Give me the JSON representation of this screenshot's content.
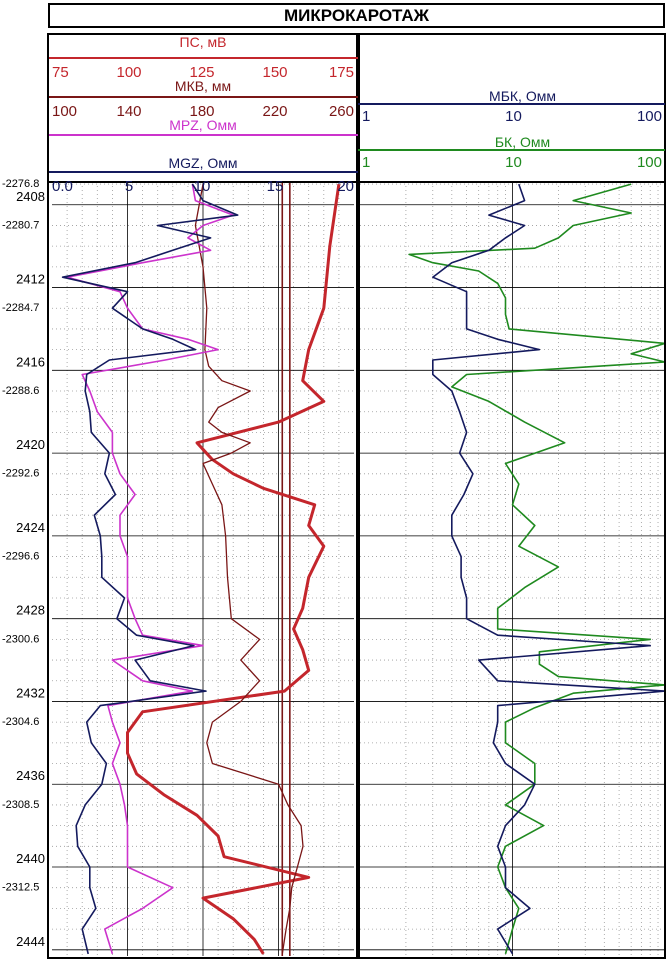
{
  "title": "МИКРОКАРОТАЖ",
  "colors": {
    "ps": "#c4262c",
    "mkv": "#7a1616",
    "mpz": "#cc33cc",
    "mgz": "#141a5e",
    "mbk": "#141a5e",
    "bk": "#1f8a1f",
    "grid_major": "#000000",
    "grid_minor": "#9a9a9a"
  },
  "chart_data": [
    {
      "type": "line",
      "track": "left",
      "y_axis": {
        "unit": "m",
        "range_md": [
          2406.9,
          2444.3
        ],
        "md_labels": [
          "2408",
          "2412",
          "2416",
          "2420",
          "2424",
          "2428",
          "2432",
          "2436",
          "2440",
          "2444"
        ],
        "md_label_values": [
          2408,
          2412,
          2416,
          2420,
          2424,
          2428,
          2432,
          2436,
          2440,
          2444
        ],
        "tvd_labels": [
          "-2276.8",
          "-2280.7",
          "-2284.7",
          "-2288.6",
          "-2292.6",
          "-2296.6",
          "-2300.6",
          "-2304.6",
          "-2308.5",
          "-2312.5"
        ],
        "tvd_label_md": [
          2406.9,
          2408.9,
          2412.9,
          2416.9,
          2420.9,
          2424.9,
          2428.9,
          2432.9,
          2436.9,
          2440.9
        ]
      },
      "scales": [
        {
          "name": "ПС, мВ",
          "ticks": [
            "75",
            "100",
            "125",
            "150",
            "175"
          ],
          "range": [
            75,
            175
          ]
        },
        {
          "name": "МКВ, мм",
          "ticks": [
            "100",
            "140",
            "180",
            "220",
            "260"
          ],
          "range": [
            100,
            260
          ]
        },
        {
          "name": "MPZ, Омм",
          "ticks": [],
          "range": [
            0,
            20
          ]
        },
        {
          "name": "MGZ, Омм",
          "ticks": [
            "0.0",
            "5",
            "10",
            "15",
            "20"
          ],
          "range": [
            0,
            20
          ]
        }
      ],
      "series": [
        {
          "name": "ПС, мВ",
          "x_scale": 0,
          "depth": [
            2407,
            2410,
            2413,
            2415,
            2416.5,
            2417.5,
            2418.5,
            2419.5,
            2420.3,
            2421,
            2421.7,
            2422.5,
            2423.5,
            2424.5,
            2426,
            2427.5,
            2428.5,
            2429.5,
            2430.5,
            2431.5,
            2432.5,
            2433.5,
            2434.5,
            2435.5,
            2436.5,
            2437.5,
            2438.5,
            2439.5,
            2440.5,
            2441.5,
            2442.5,
            2443.5,
            2444.2
          ],
          "values": [
            170,
            167,
            165,
            160,
            158,
            165,
            150,
            123,
            128,
            135,
            145,
            162,
            160,
            165,
            160,
            158,
            155,
            158,
            160,
            152,
            105,
            100,
            100,
            103,
            112,
            123,
            130,
            132,
            160,
            125,
            135,
            142,
            145
          ]
        },
        {
          "name": "МКВ, мм",
          "x_scale": 1,
          "depth": [
            2407,
            2409,
            2411,
            2413,
            2415,
            2415.8,
            2416.5,
            2417,
            2417.8,
            2418.5,
            2419,
            2419.5,
            2420,
            2420.5,
            2421.5,
            2422.5,
            2424,
            2426,
            2428,
            2429,
            2430,
            2431,
            2432,
            2433,
            2434,
            2435,
            2436,
            2437,
            2438,
            2439,
            2440,
            2441,
            2442,
            2443,
            2444.2
          ],
          "values": [
            180,
            176,
            180,
            182,
            181,
            183,
            190,
            205,
            188,
            183,
            190,
            205,
            195,
            180,
            185,
            190,
            192,
            193,
            195,
            210,
            200,
            210,
            200,
            185,
            182,
            185,
            220,
            225,
            232,
            233,
            230,
            227,
            226,
            224,
            222
          ]
        },
        {
          "name": "MPZ, Омм",
          "x_scale": 2,
          "depth": [
            2407,
            2407.8,
            2408.5,
            2409,
            2409.6,
            2410.2,
            2410.8,
            2411.5,
            2412.2,
            2413,
            2414,
            2414.5,
            2415,
            2415.5,
            2416.2,
            2417,
            2418,
            2419,
            2420,
            2421,
            2422,
            2423,
            2424,
            2425,
            2426,
            2427,
            2428,
            2428.8,
            2429.3,
            2430,
            2431,
            2431.5,
            2432.2,
            2433,
            2434,
            2435,
            2436,
            2437,
            2438,
            2439,
            2440,
            2441,
            2442,
            2443,
            2444.2
          ],
          "values": [
            9.3,
            9.5,
            12,
            10,
            9,
            10.5,
            6,
            1,
            4.5,
            5,
            6,
            9,
            11,
            7.5,
            2,
            2.5,
            3,
            4,
            4,
            4.5,
            5.5,
            4.5,
            4.5,
            5,
            5,
            5,
            5.5,
            6,
            10,
            4,
            6,
            9.3,
            3.7,
            4,
            4.5,
            4,
            4.5,
            4.8,
            5,
            5,
            5,
            8,
            6,
            3.5,
            4
          ]
        },
        {
          "name": "MGZ, Омм",
          "x_scale": 3,
          "depth": [
            2407,
            2407.8,
            2408.5,
            2409,
            2409.6,
            2410.2,
            2410.8,
            2411.5,
            2412.2,
            2413,
            2414,
            2414.5,
            2415,
            2415.5,
            2416.2,
            2417,
            2418,
            2419,
            2420,
            2421,
            2422,
            2423,
            2424,
            2425,
            2426,
            2427,
            2428,
            2428.8,
            2429.3,
            2430,
            2431,
            2431.5,
            2432.2,
            2433,
            2434,
            2435,
            2436,
            2437,
            2438,
            2439,
            2440,
            2441,
            2442,
            2443,
            2444.2
          ],
          "values": [
            9.3,
            10,
            12.3,
            7,
            10.5,
            8,
            5.5,
            0.7,
            5,
            4,
            6,
            8,
            9.5,
            3.8,
            2.3,
            2.2,
            2.5,
            2.6,
            3.8,
            3.5,
            4.2,
            2.8,
            3.2,
            3.3,
            3.3,
            4.8,
            4.3,
            5.6,
            9.4,
            5.5,
            6.5,
            10.2,
            3.2,
            2.3,
            2.6,
            3.6,
            3.3,
            2.2,
            1.6,
            1.7,
            2.5,
            2.5,
            2.9,
            2,
            2.4
          ]
        }
      ],
      "vertical_markers": [
        {
          "name": "МКВ, мм",
          "x_scale": 1,
          "value": 222
        },
        {
          "name": "МКВ, мм",
          "x_scale": 1,
          "value": 226
        }
      ]
    },
    {
      "type": "line",
      "track": "right",
      "x_log": true,
      "y_axis": {
        "unit": "m",
        "range_md": [
          2406.9,
          2444.3
        ]
      },
      "scales": [
        {
          "name": "МБК, Омм",
          "ticks": [
            "1",
            "10",
            "100"
          ],
          "range": [
            1,
            100
          ]
        },
        {
          "name": "БК, Омм",
          "ticks": [
            "1",
            "10",
            "100"
          ],
          "range": [
            1,
            100
          ]
        }
      ],
      "series": [
        {
          "name": "БК, Омм",
          "x_scale": 1,
          "depth": [
            2407,
            2407.8,
            2408.4,
            2409,
            2409.6,
            2410.1,
            2410.4,
            2410.8,
            2411.2,
            2411.8,
            2412.5,
            2413.3,
            2414,
            2414.7,
            2415.2,
            2415.6,
            2416.2,
            2416.8,
            2417.5,
            2418.5,
            2419.5,
            2420.5,
            2421.5,
            2422.5,
            2423.5,
            2424.5,
            2425.5,
            2426.5,
            2427.5,
            2428.5,
            2429,
            2429.6,
            2430.2,
            2430.8,
            2431.2,
            2431.6,
            2432.3,
            2433,
            2434,
            2435,
            2436,
            2437,
            2438,
            2439,
            2440,
            2441,
            2442,
            2443,
            2444.2
          ],
          "values": [
            60,
            25,
            60,
            25,
            20,
            14,
            2.1,
            3,
            6,
            8,
            9,
            9,
            9.5,
            100,
            60,
            100,
            5,
            4,
            7,
            12,
            22,
            9,
            11,
            10,
            14,
            11,
            20,
            12,
            8,
            8,
            80,
            15,
            15,
            20,
            100,
            25,
            14,
            9,
            9,
            14,
            14,
            9,
            16,
            9,
            8,
            9,
            11,
            10,
            9
          ]
        },
        {
          "name": "МБК, Омм",
          "x_scale": 0,
          "depth": [
            2407,
            2407.8,
            2408.5,
            2409,
            2409.6,
            2410.2,
            2410.8,
            2411.5,
            2412.2,
            2413,
            2414,
            2414.5,
            2415,
            2415.5,
            2416.2,
            2417,
            2418,
            2419,
            2420,
            2421,
            2422,
            2423,
            2424,
            2425,
            2426,
            2427,
            2428,
            2428.8,
            2429.3,
            2430,
            2431,
            2431.5,
            2432.2,
            2433,
            2434,
            2435,
            2436,
            2437,
            2438,
            2439,
            2440,
            2441,
            2442,
            2443,
            2444.2
          ],
          "values": [
            11,
            12,
            7,
            12,
            9,
            7,
            4,
            3,
            5,
            5,
            5,
            8,
            15,
            3,
            3,
            4,
            4.5,
            5,
            4.5,
            5.5,
            4.8,
            4,
            4,
            4.6,
            4.6,
            5,
            5,
            8,
            80,
            6,
            8,
            100,
            8,
            8,
            7.5,
            9,
            14,
            12,
            9,
            8,
            9,
            9,
            13,
            8,
            10
          ]
        }
      ]
    }
  ]
}
